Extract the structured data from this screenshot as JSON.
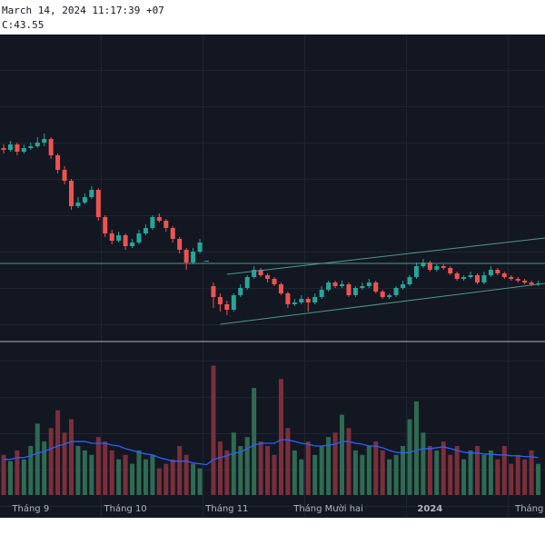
{
  "header": {
    "datetime": "March 14, 2024 11:17:39 +07",
    "close_label": "C:43.55"
  },
  "chart_data": {
    "type": "candlestick",
    "categories": [
      null,
      null,
      null,
      null,
      "Tháng 9",
      null,
      null,
      null,
      null,
      null,
      null,
      null,
      null,
      null,
      null,
      null,
      null,
      null,
      "Tháng 10",
      null,
      null,
      null,
      null,
      null,
      null,
      null,
      null,
      null,
      null,
      null,
      null,
      null,
      null,
      "Tháng 11",
      null,
      null,
      null,
      null,
      null,
      null,
      null,
      null,
      null,
      null,
      null,
      null,
      null,
      null,
      "Tháng Mười hai",
      null,
      null,
      null,
      null,
      null,
      null,
      null,
      null,
      null,
      null,
      null,
      null,
      null,
      null,
      "2024",
      null,
      null,
      null,
      null,
      null,
      null,
      null,
      null,
      null,
      null,
      null,
      null,
      null,
      null,
      null,
      "Tháng Hai"
    ],
    "open": [
      51.0,
      50.9,
      51.2,
      50.8,
      51.0,
      51.1,
      51.3,
      51.5,
      50.6,
      49.8,
      49.2,
      47.8,
      48.0,
      48.3,
      48.7,
      47.2,
      46.3,
      45.9,
      46.2,
      45.6,
      45.8,
      46.3,
      46.6,
      47.2,
      47.0,
      46.6,
      46.0,
      45.4,
      44.7,
      45.3,
      44.8,
      43.4,
      42.8,
      42.4,
      42.1,
      42.9,
      43.3,
      43.9,
      44.3,
      44.0,
      43.8,
      43.5,
      43.0,
      42.4,
      42.5,
      42.7,
      42.5,
      42.8,
      43.2,
      43.6,
      43.4,
      43.5,
      42.9,
      43.3,
      43.4,
      43.6,
      43.1,
      42.8,
      42.9,
      43.3,
      43.5,
      43.9,
      44.5,
      44.7,
      44.3,
      44.5,
      44.4,
      44.1,
      43.8,
      43.9,
      44.0,
      43.6,
      44.0,
      44.3,
      44.1,
      43.9,
      43.8,
      43.7,
      43.6,
      43.5
    ],
    "high": [
      51.2,
      51.4,
      51.3,
      51.2,
      51.3,
      51.6,
      51.8,
      51.6,
      50.7,
      50.0,
      49.3,
      48.3,
      48.5,
      48.9,
      48.8,
      47.3,
      46.5,
      46.4,
      46.3,
      46.0,
      46.5,
      46.8,
      47.3,
      47.4,
      47.1,
      46.7,
      46.1,
      45.5,
      45.5,
      46.0,
      44.8,
      43.6,
      43.0,
      42.6,
      43.0,
      43.5,
      44.0,
      44.5,
      44.4,
      44.1,
      43.9,
      43.6,
      43.1,
      42.7,
      42.9,
      42.8,
      43.0,
      43.4,
      43.7,
      43.7,
      43.7,
      43.6,
      43.4,
      43.6,
      43.8,
      43.7,
      43.2,
      43.0,
      43.4,
      43.7,
      44.0,
      44.7,
      44.9,
      44.8,
      44.6,
      44.6,
      44.5,
      44.2,
      44.0,
      44.2,
      44.1,
      44.2,
      44.5,
      44.4,
      44.2,
      44.0,
      43.9,
      43.8,
      43.7,
      43.7
    ],
    "low": [
      50.7,
      50.8,
      50.6,
      50.7,
      50.9,
      51.0,
      51.1,
      50.4,
      49.6,
      49.0,
      47.6,
      47.7,
      47.9,
      48.2,
      47.0,
      46.1,
      45.7,
      45.8,
      45.4,
      45.5,
      45.7,
      46.2,
      46.5,
      46.9,
      46.4,
      45.8,
      45.2,
      44.3,
      44.6,
      45.2,
      44.8,
      42.2,
      42.0,
      41.8,
      42.0,
      42.8,
      43.2,
      43.8,
      43.9,
      43.6,
      43.4,
      42.9,
      42.2,
      42.3,
      42.4,
      42.0,
      42.4,
      42.7,
      43.1,
      43.3,
      43.3,
      42.8,
      42.8,
      43.2,
      43.3,
      43.0,
      42.7,
      42.7,
      42.8,
      43.2,
      43.4,
      43.8,
      44.4,
      44.2,
      44.2,
      44.3,
      44.0,
      43.7,
      43.7,
      43.8,
      43.5,
      43.5,
      43.9,
      44.0,
      43.8,
      43.7,
      43.6,
      43.5,
      43.4,
      43.4
    ],
    "close": [
      50.9,
      51.2,
      50.8,
      51.0,
      51.1,
      51.3,
      51.5,
      50.6,
      49.8,
      49.2,
      47.8,
      48.0,
      48.3,
      48.7,
      47.2,
      46.3,
      45.9,
      46.2,
      45.6,
      45.8,
      46.3,
      46.6,
      47.2,
      47.0,
      46.6,
      46.0,
      45.4,
      44.7,
      45.3,
      45.8,
      44.8,
      42.8,
      42.4,
      42.1,
      42.9,
      43.3,
      43.9,
      44.3,
      44.0,
      43.8,
      43.5,
      43.0,
      42.4,
      42.5,
      42.7,
      42.5,
      42.8,
      43.2,
      43.6,
      43.4,
      43.5,
      42.9,
      43.3,
      43.4,
      43.6,
      43.1,
      42.8,
      42.9,
      43.3,
      43.5,
      43.9,
      44.5,
      44.7,
      44.3,
      44.5,
      44.4,
      44.1,
      43.8,
      43.9,
      44.0,
      43.6,
      44.0,
      44.3,
      44.1,
      43.9,
      43.8,
      43.7,
      43.6,
      43.5,
      43.55
    ],
    "volume": [
      45,
      38,
      50,
      40,
      55,
      80,
      60,
      75,
      95,
      70,
      85,
      55,
      50,
      45,
      65,
      60,
      50,
      40,
      45,
      35,
      50,
      40,
      45,
      30,
      35,
      40,
      55,
      45,
      35,
      30,
      0,
      145,
      60,
      50,
      70,
      55,
      65,
      120,
      60,
      55,
      45,
      130,
      75,
      50,
      40,
      60,
      45,
      55,
      65,
      70,
      90,
      75,
      50,
      45,
      55,
      60,
      50,
      40,
      45,
      55,
      85,
      105,
      70,
      55,
      50,
      60,
      45,
      55,
      40,
      50,
      55,
      45,
      50,
      40,
      55,
      35,
      45,
      40,
      50,
      35
    ],
    "volume_ma": [
      40,
      40,
      42,
      42,
      44,
      47,
      49,
      52,
      55,
      57,
      60,
      60,
      60,
      58,
      58,
      58,
      56,
      55,
      52,
      50,
      48,
      46,
      45,
      42,
      40,
      38,
      38,
      38,
      36,
      35,
      34,
      40,
      42,
      44,
      47,
      48,
      52,
      56,
      58,
      58,
      58,
      62,
      62,
      60,
      58,
      57,
      55,
      55,
      56,
      57,
      60,
      60,
      58,
      57,
      55,
      55,
      53,
      50,
      48,
      47,
      48,
      50,
      52,
      52,
      53,
      54,
      52,
      50,
      48,
      47,
      47,
      46,
      46,
      45,
      45,
      44,
      44,
      43,
      43,
      42
    ],
    "ylim": [
      40.4,
      57.25
    ],
    "volume_ylim": [
      0,
      170
    ],
    "hlines": [
      44.65
    ],
    "trendlines": [
      {
        "x": [
          33,
          80
        ],
        "y": [
          44.05,
          46.05
        ]
      },
      {
        "x": [
          32,
          80
        ],
        "y": [
          41.3,
          43.55
        ]
      }
    ],
    "up_color": "#26a69a",
    "down_color": "#ef5350",
    "volume_up_color": "#2e6b52",
    "volume_down_color": "#7a2f3a",
    "ma_color": "#2962ff",
    "line_color": "#4a9a8c"
  }
}
